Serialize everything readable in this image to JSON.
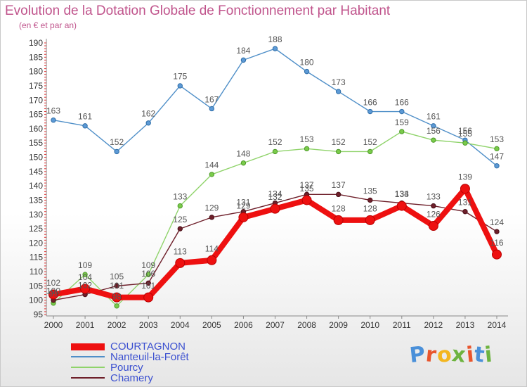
{
  "title": "Evolution de la Dotation Globale de Fonctionnement par Habitant",
  "subtitle": "(en € et par an)",
  "logo": {
    "text": "Proxiti",
    "colors": [
      "#4a90d9",
      "#e8552d",
      "#f3b61f",
      "#6db33f",
      "#e8552d",
      "#4a90d9",
      "#6db33f"
    ]
  },
  "chart_data": {
    "type": "line",
    "title": "Evolution de la Dotation Globale de Fonctionnement par Habitant",
    "subtitle": "(en € et par an)",
    "x": [
      2000,
      2001,
      2002,
      2003,
      2004,
      2005,
      2006,
      2007,
      2008,
      2009,
      2010,
      2011,
      2012,
      2013,
      2014
    ],
    "ylim": [
      95,
      190
    ],
    "yticks": [
      95,
      100,
      105,
      110,
      115,
      120,
      125,
      130,
      135,
      140,
      145,
      150,
      155,
      160,
      165,
      170,
      175,
      180,
      185,
      190
    ],
    "grid": false,
    "legend_position": "bottom-left",
    "series": [
      {
        "name": "Nanteuil-la-Forêt",
        "color": "#4f8fc8",
        "values": [
          163,
          161,
          152,
          162,
          175,
          167,
          184,
          188,
          180,
          173,
          166,
          166,
          161,
          156,
          147
        ]
      },
      {
        "name": "Pourcy",
        "color": "#8fd36a",
        "values": [
          99,
          109,
          98,
          109,
          133,
          144,
          148,
          152,
          153,
          152,
          152,
          159,
          156,
          155,
          153
        ]
      },
      {
        "name": "Chamery",
        "color": "#6e1f2a",
        "values": [
          100,
          102,
          105,
          106,
          125,
          129,
          131,
          134,
          137,
          137,
          135,
          134,
          133,
          131,
          124
        ]
      },
      {
        "name": "COURTAGNON",
        "color": "#ee1010",
        "values": [
          102,
          104,
          101,
          101,
          113,
          114,
          129,
          132,
          135,
          128,
          128,
          133,
          126,
          139,
          116
        ]
      }
    ],
    "legend_order": [
      "COURTAGNON",
      "Nanteuil-la-Forêt",
      "Pourcy",
      "Chamery"
    ]
  }
}
